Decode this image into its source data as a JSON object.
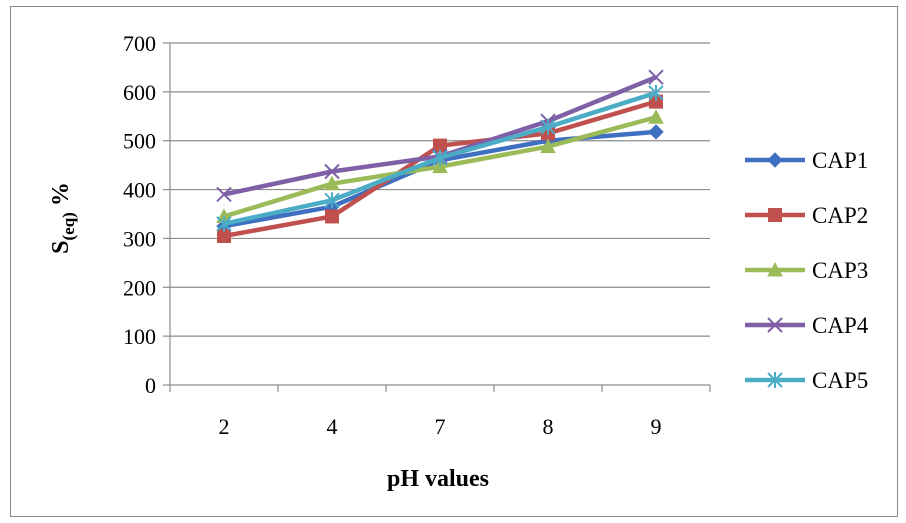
{
  "chart_data": {
    "type": "line",
    "categories": [
      "2",
      "4",
      "7",
      "8",
      "9"
    ],
    "xlabel": "pH values",
    "ylabel_main": "S",
    "ylabel_sub": "(eq)",
    "ylabel_suffix": " %",
    "ylim": [
      0,
      700
    ],
    "yticks": [
      0,
      100,
      200,
      300,
      400,
      500,
      600,
      700
    ],
    "grid": true,
    "legend_position": "right",
    "series": [
      {
        "name": "CAP1",
        "values": [
          325,
          365,
          460,
          500,
          518
        ],
        "color": "#3e6fc1",
        "marker": "diamond"
      },
      {
        "name": "CAP2",
        "values": [
          305,
          345,
          490,
          515,
          580
        ],
        "color": "#c0504d",
        "marker": "square"
      },
      {
        "name": "CAP3",
        "values": [
          345,
          412,
          447,
          488,
          548
        ],
        "color": "#9bbb59",
        "marker": "triangle"
      },
      {
        "name": "CAP4",
        "values": [
          390,
          437,
          468,
          540,
          630
        ],
        "color": "#7f5fa6",
        "marker": "x"
      },
      {
        "name": "CAP5",
        "values": [
          330,
          378,
          465,
          528,
          598
        ],
        "color": "#4bacc6",
        "marker": "star"
      }
    ]
  }
}
